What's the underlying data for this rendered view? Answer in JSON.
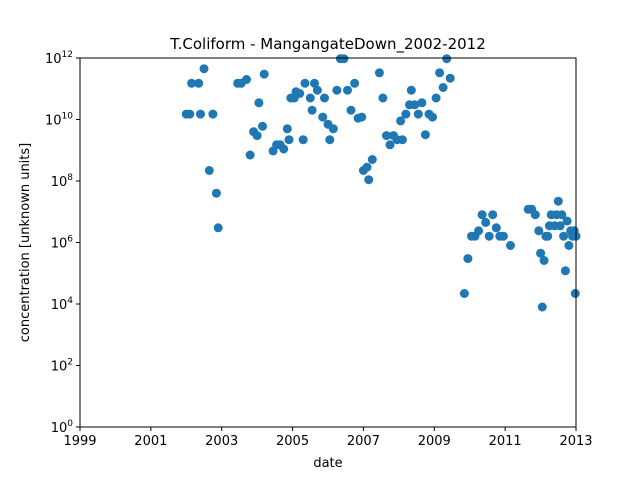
{
  "chart_data": {
    "type": "scatter",
    "title": "T.Coliform - MangangateDown_2002-2012",
    "xlabel": "date",
    "ylabel": "concentration [unknown units]",
    "xlim": [
      1999,
      2013
    ],
    "ylim": [
      1,
      1000000000000.0
    ],
    "y_scale": "log",
    "grid": false,
    "legend": "none",
    "point_color": "#1f77b4",
    "x_ticks": [
      {
        "value": 1999,
        "label": "1999"
      },
      {
        "value": 2001,
        "label": "2001"
      },
      {
        "value": 2003,
        "label": "2003"
      },
      {
        "value": 2005,
        "label": "2005"
      },
      {
        "value": 2007,
        "label": "2007"
      },
      {
        "value": 2009,
        "label": "2009"
      },
      {
        "value": 2011,
        "label": "2011"
      },
      {
        "value": 2013,
        "label": "2013"
      }
    ],
    "y_ticks": [
      {
        "exp": 0,
        "base": "10",
        "sup": "0"
      },
      {
        "exp": 2,
        "base": "10",
        "sup": "2"
      },
      {
        "exp": 4,
        "base": "10",
        "sup": "4"
      },
      {
        "exp": 6,
        "base": "10",
        "sup": "6"
      },
      {
        "exp": 8,
        "base": "10",
        "sup": "8"
      },
      {
        "exp": 10,
        "base": "10",
        "sup": "10"
      },
      {
        "exp": 12,
        "base": "10",
        "sup": "12"
      }
    ],
    "points": [
      [
        2002.0,
        15000000000.0
      ],
      [
        2002.1,
        15000000000.0
      ],
      [
        2002.15,
        150000000000.0
      ],
      [
        2002.35,
        150000000000.0
      ],
      [
        2002.4,
        15000000000.0
      ],
      [
        2002.5,
        450000000000.0
      ],
      [
        2002.65,
        220000000.0
      ],
      [
        2002.75,
        15000000000.0
      ],
      [
        2002.85,
        40000000.0
      ],
      [
        2002.9,
        3000000.0
      ],
      [
        2003.45,
        150000000000.0
      ],
      [
        2003.55,
        150000000000.0
      ],
      [
        2003.7,
        200000000000.0
      ],
      [
        2003.8,
        700000000.0
      ],
      [
        2003.9,
        4000000000.0
      ],
      [
        2004.0,
        3000000000.0
      ],
      [
        2004.05,
        35000000000.0
      ],
      [
        2004.15,
        6000000000.0
      ],
      [
        2004.2,
        300000000000.0
      ],
      [
        2004.45,
        950000000.0
      ],
      [
        2004.55,
        1500000000.0
      ],
      [
        2004.65,
        1500000000.0
      ],
      [
        2004.75,
        1100000000.0
      ],
      [
        2004.85,
        5000000000.0
      ],
      [
        2004.9,
        2200000000.0
      ],
      [
        2004.95,
        50000000000.0
      ],
      [
        2005.05,
        50000000000.0
      ],
      [
        2005.1,
        80000000000.0
      ],
      [
        2005.2,
        70000000000.0
      ],
      [
        2005.3,
        2200000000.0
      ],
      [
        2005.35,
        150000000000.0
      ],
      [
        2005.5,
        50000000000.0
      ],
      [
        2005.55,
        20000000000.0
      ],
      [
        2005.62,
        150000000000.0
      ],
      [
        2005.7,
        90000000000.0
      ],
      [
        2005.85,
        12000000000.0
      ],
      [
        2005.9,
        50000000000.0
      ],
      [
        2006.0,
        7000000000.0
      ],
      [
        2006.05,
        2200000000.0
      ],
      [
        2006.15,
        5000000000.0
      ],
      [
        2006.25,
        90000000000.0
      ],
      [
        2006.35,
        950000000000.0
      ],
      [
        2006.45,
        950000000000.0
      ],
      [
        2006.55,
        90000000000.0
      ],
      [
        2006.65,
        20000000000.0
      ],
      [
        2006.75,
        150000000000.0
      ],
      [
        2006.85,
        11000000000.0
      ],
      [
        2006.95,
        12000000000.0
      ],
      [
        2007.0,
        220000000.0
      ],
      [
        2007.1,
        280000000.0
      ],
      [
        2007.15,
        110000000.0
      ],
      [
        2007.25,
        500000000.0
      ],
      [
        2007.45,
        330000000000.0
      ],
      [
        2007.55,
        50000000000.0
      ],
      [
        2007.65,
        3000000000.0
      ],
      [
        2007.75,
        1500000000.0
      ],
      [
        2007.85,
        3000000000.0
      ],
      [
        2007.95,
        2200000000.0
      ],
      [
        2008.05,
        9000000000.0
      ],
      [
        2008.1,
        2200000000.0
      ],
      [
        2008.2,
        15000000000.0
      ],
      [
        2008.3,
        30000000000.0
      ],
      [
        2008.35,
        90000000000.0
      ],
      [
        2008.45,
        30000000000.0
      ],
      [
        2008.55,
        15000000000.0
      ],
      [
        2008.65,
        35000000000.0
      ],
      [
        2008.75,
        3200000000.0
      ],
      [
        2008.85,
        15000000000.0
      ],
      [
        2008.95,
        12000000000.0
      ],
      [
        2009.05,
        50000000000.0
      ],
      [
        2009.15,
        330000000000.0
      ],
      [
        2009.25,
        110000000000.0
      ],
      [
        2009.35,
        950000000000.0
      ],
      [
        2009.45,
        220000000000.0
      ],
      [
        2009.85,
        22000.0
      ],
      [
        2009.95,
        300000.0
      ],
      [
        2010.05,
        1600000.0
      ],
      [
        2010.15,
        1600000.0
      ],
      [
        2010.25,
        2400000.0
      ],
      [
        2010.35,
        8000000.0
      ],
      [
        2010.45,
        4500000.0
      ],
      [
        2010.55,
        1600000.0
      ],
      [
        2010.65,
        8000000.0
      ],
      [
        2010.75,
        3000000.0
      ],
      [
        2010.85,
        1600000.0
      ],
      [
        2010.95,
        1600000.0
      ],
      [
        2011.15,
        800000.0
      ],
      [
        2011.65,
        12000000.0
      ],
      [
        2011.75,
        12000000.0
      ],
      [
        2011.85,
        8000000.0
      ],
      [
        2011.95,
        2400000.0
      ],
      [
        2012.0,
        450000.0
      ],
      [
        2012.05,
        8000.0
      ],
      [
        2012.1,
        260000.0
      ],
      [
        2012.15,
        1600000.0
      ],
      [
        2012.2,
        1600000.0
      ],
      [
        2012.25,
        3500000.0
      ],
      [
        2012.3,
        8000000.0
      ],
      [
        2012.4,
        3500000.0
      ],
      [
        2012.45,
        8000000.0
      ],
      [
        2012.5,
        22000000.0
      ],
      [
        2012.55,
        3500000.0
      ],
      [
        2012.6,
        8000000.0
      ],
      [
        2012.65,
        1600000.0
      ],
      [
        2012.7,
        120000.0
      ],
      [
        2012.75,
        5000000.0
      ],
      [
        2012.8,
        800000.0
      ],
      [
        2012.85,
        2400000.0
      ],
      [
        2012.9,
        1600000.0
      ],
      [
        2012.95,
        2400000.0
      ],
      [
        2013.0,
        1600000.0
      ],
      [
        2012.98,
        22000.0
      ]
    ]
  }
}
